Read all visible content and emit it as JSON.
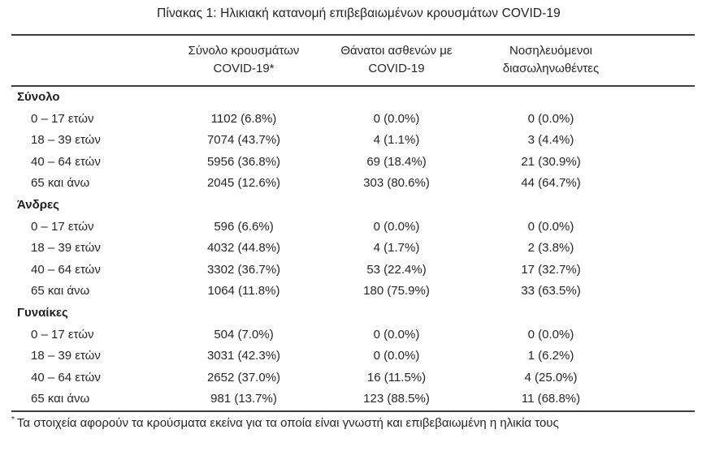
{
  "title": "Πίνακας 1: Ηλικιακή κατανομή επιβεβαιωμένων κρουσμάτων COVID-19",
  "table": {
    "headers": [
      {
        "line1": "Σύνολο κρουσμάτων",
        "line2": "COVID-19*"
      },
      {
        "line1": "Θάνατοι ασθενών με",
        "line2": "COVID-19"
      },
      {
        "line1": "Νοσηλευόμενοι",
        "line2": "διασωληνωθέντες"
      }
    ],
    "sections": [
      {
        "name": "Σύνολο",
        "rows": [
          {
            "label": "0 – 17 ετών",
            "cases": "1102 (6.8%)",
            "deaths": "0 (0.0%)",
            "intubated": "0 (0.0%)"
          },
          {
            "label": "18 – 39 ετών",
            "cases": "7074 (43.7%)",
            "deaths": "4 (1.1%)",
            "intubated": "3 (4.4%)"
          },
          {
            "label": "40 – 64 ετών",
            "cases": "5956 (36.8%)",
            "deaths": "69 (18.4%)",
            "intubated": "21 (30.9%)"
          },
          {
            "label": "65 και άνω",
            "cases": "2045 (12.6%)",
            "deaths": "303 (80.6%)",
            "intubated": "44 (64.7%)"
          }
        ]
      },
      {
        "name": "Άνδρες",
        "rows": [
          {
            "label": "0 – 17 ετών",
            "cases": "596 (6.6%)",
            "deaths": "0 (0.0%)",
            "intubated": "0 (0.0%)"
          },
          {
            "label": "18 – 39 ετών",
            "cases": "4032 (44.8%)",
            "deaths": "4 (1.7%)",
            "intubated": "2 (3.8%)"
          },
          {
            "label": "40 – 64 ετών",
            "cases": "3302 (36.7%)",
            "deaths": "53 (22.4%)",
            "intubated": "17 (32.7%)"
          },
          {
            "label": "65 και άνω",
            "cases": "1064 (11.8%)",
            "deaths": "180 (75.9%)",
            "intubated": "33 (63.5%)"
          }
        ]
      },
      {
        "name": "Γυναίκες",
        "rows": [
          {
            "label": "0 – 17 ετών",
            "cases": "504 (7.0%)",
            "deaths": "0 (0.0%)",
            "intubated": "0 (0.0%)"
          },
          {
            "label": "18 – 39 ετών",
            "cases": "3031 (42.3%)",
            "deaths": "0 (0.0%)",
            "intubated": "1 (6.2%)"
          },
          {
            "label": "40 – 64 ετών",
            "cases": "2652 (37.0%)",
            "deaths": "16 (11.5%)",
            "intubated": "4 (25.0%)"
          },
          {
            "label": "65 και άνω",
            "cases": "981 (13.7%)",
            "deaths": "123 (88.5%)",
            "intubated": "11 (68.8%)"
          }
        ]
      }
    ]
  },
  "footnote": {
    "marker": "*",
    "text": "Τα στοιχεία αφορούν τα κρούσματα εκείνα για τα οποία είναι γνωστή και επιβεβαιωμένη η ηλικία τους"
  },
  "colors": {
    "text": "#262626",
    "rule": "#3f3f3f",
    "background": "#ffffff"
  }
}
